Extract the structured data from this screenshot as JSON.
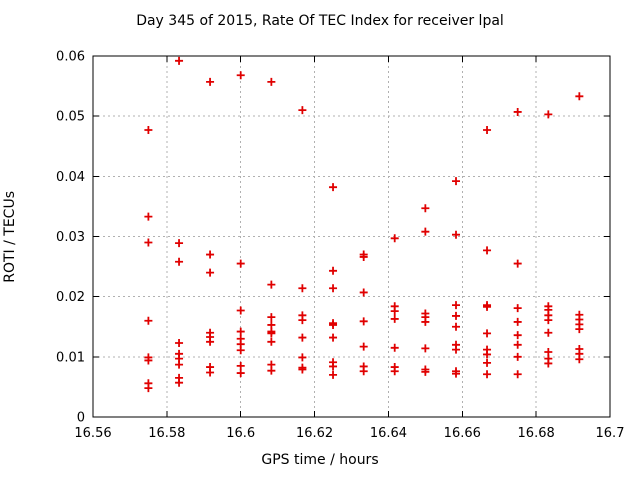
{
  "chart_data": {
    "type": "scatter",
    "title": "Day 345 of 2015, Rate Of TEC Index for receiver lpal",
    "xlabel": "GPS time / hours",
    "ylabel": "ROTI / TECUs",
    "xlim": [
      16.56,
      16.7
    ],
    "ylim": [
      0,
      0.06
    ],
    "xticks": [
      16.56,
      16.58,
      16.6,
      16.62,
      16.64,
      16.66,
      16.68,
      16.7
    ],
    "xtick_labels": [
      "16.56",
      "16.58",
      "16.6",
      "16.62",
      "16.64",
      "16.66",
      "16.68",
      "16.7"
    ],
    "yticks": [
      0,
      0.01,
      0.02,
      0.03,
      0.04,
      0.05,
      0.06
    ],
    "ytick_labels": [
      "0",
      "0.01",
      "0.02",
      "0.03",
      "0.04",
      "0.05",
      "0.06"
    ],
    "grid": true,
    "legend_visible": false,
    "marker": "plus",
    "colors": {
      "marker": "#e00000",
      "grid": "#b0b0b0",
      "axis": "#000000",
      "background": "#ffffff"
    },
    "series": [
      {
        "name": "ROTI",
        "points": [
          [
            16.575,
            0.0477
          ],
          [
            16.575,
            0.0333
          ],
          [
            16.575,
            0.029
          ],
          [
            16.575,
            0.016
          ],
          [
            16.575,
            0.0099
          ],
          [
            16.575,
            0.0094
          ],
          [
            16.575,
            0.0056
          ],
          [
            16.575,
            0.0048
          ],
          [
            16.5833,
            0.0592
          ],
          [
            16.5833,
            0.0289
          ],
          [
            16.5833,
            0.0258
          ],
          [
            16.5833,
            0.0123
          ],
          [
            16.5833,
            0.0105
          ],
          [
            16.5833,
            0.0097
          ],
          [
            16.5833,
            0.0087
          ],
          [
            16.5833,
            0.0065
          ],
          [
            16.5833,
            0.0057
          ],
          [
            16.5917,
            0.0557
          ],
          [
            16.5917,
            0.027
          ],
          [
            16.5917,
            0.024
          ],
          [
            16.5917,
            0.014
          ],
          [
            16.5917,
            0.0133
          ],
          [
            16.5917,
            0.0125
          ],
          [
            16.5917,
            0.0083
          ],
          [
            16.5917,
            0.0074
          ],
          [
            16.6,
            0.0568
          ],
          [
            16.6,
            0.0255
          ],
          [
            16.6,
            0.0177
          ],
          [
            16.6,
            0.0142
          ],
          [
            16.6,
            0.013
          ],
          [
            16.6,
            0.0121
          ],
          [
            16.6,
            0.0111
          ],
          [
            16.6,
            0.0085
          ],
          [
            16.6,
            0.0073
          ],
          [
            16.6083,
            0.0557
          ],
          [
            16.6083,
            0.022
          ],
          [
            16.6083,
            0.0166
          ],
          [
            16.6083,
            0.0153
          ],
          [
            16.6083,
            0.0142
          ],
          [
            16.6083,
            0.0139
          ],
          [
            16.6083,
            0.0125
          ],
          [
            16.6083,
            0.0087
          ],
          [
            16.6083,
            0.0077
          ],
          [
            16.6167,
            0.051
          ],
          [
            16.6167,
            0.0214
          ],
          [
            16.6167,
            0.0169
          ],
          [
            16.6167,
            0.0161
          ],
          [
            16.6167,
            0.0132
          ],
          [
            16.6167,
            0.0099
          ],
          [
            16.6167,
            0.0082
          ],
          [
            16.6167,
            0.0079
          ],
          [
            16.625,
            0.0382
          ],
          [
            16.625,
            0.0243
          ],
          [
            16.625,
            0.0214
          ],
          [
            16.625,
            0.0156
          ],
          [
            16.625,
            0.0153
          ],
          [
            16.625,
            0.0132
          ],
          [
            16.625,
            0.0091
          ],
          [
            16.625,
            0.0084
          ],
          [
            16.625,
            0.007
          ],
          [
            16.6333,
            0.027
          ],
          [
            16.6333,
            0.0266
          ],
          [
            16.6333,
            0.0207
          ],
          [
            16.6333,
            0.0159
          ],
          [
            16.6333,
            0.0117
          ],
          [
            16.6333,
            0.0084
          ],
          [
            16.6333,
            0.0076
          ],
          [
            16.6417,
            0.0297
          ],
          [
            16.6417,
            0.0184
          ],
          [
            16.6417,
            0.0176
          ],
          [
            16.6417,
            0.0163
          ],
          [
            16.6417,
            0.0115
          ],
          [
            16.6417,
            0.0083
          ],
          [
            16.6417,
            0.0076
          ],
          [
            16.65,
            0.0347
          ],
          [
            16.65,
            0.0308
          ],
          [
            16.65,
            0.0172
          ],
          [
            16.65,
            0.0166
          ],
          [
            16.65,
            0.0158
          ],
          [
            16.65,
            0.0114
          ],
          [
            16.65,
            0.0079
          ],
          [
            16.65,
            0.0075
          ],
          [
            16.6583,
            0.0392
          ],
          [
            16.6583,
            0.0303
          ],
          [
            16.6583,
            0.0186
          ],
          [
            16.6583,
            0.0168
          ],
          [
            16.6583,
            0.015
          ],
          [
            16.6583,
            0.012
          ],
          [
            16.6583,
            0.0112
          ],
          [
            16.6583,
            0.0076
          ],
          [
            16.6583,
            0.0072
          ],
          [
            16.6667,
            0.0477
          ],
          [
            16.6667,
            0.0277
          ],
          [
            16.6667,
            0.0186
          ],
          [
            16.6667,
            0.0183
          ],
          [
            16.6667,
            0.0139
          ],
          [
            16.6667,
            0.0112
          ],
          [
            16.6667,
            0.0104
          ],
          [
            16.6667,
            0.009
          ],
          [
            16.6667,
            0.0071
          ],
          [
            16.675,
            0.0507
          ],
          [
            16.675,
            0.0255
          ],
          [
            16.675,
            0.0181
          ],
          [
            16.675,
            0.0158
          ],
          [
            16.675,
            0.0136
          ],
          [
            16.675,
            0.012
          ],
          [
            16.675,
            0.01
          ],
          [
            16.675,
            0.0071
          ],
          [
            16.6833,
            0.0503
          ],
          [
            16.6833,
            0.0184
          ],
          [
            16.6833,
            0.0178
          ],
          [
            16.6833,
            0.0169
          ],
          [
            16.6833,
            0.0161
          ],
          [
            16.6833,
            0.014
          ],
          [
            16.6833,
            0.0108
          ],
          [
            16.6833,
            0.0097
          ],
          [
            16.6833,
            0.0089
          ],
          [
            16.6917,
            0.0533
          ],
          [
            16.6917,
            0.017
          ],
          [
            16.6917,
            0.0162
          ],
          [
            16.6917,
            0.0154
          ],
          [
            16.6917,
            0.0146
          ],
          [
            16.6917,
            0.0113
          ],
          [
            16.6917,
            0.0105
          ],
          [
            16.6917,
            0.0096
          ]
        ]
      }
    ]
  }
}
